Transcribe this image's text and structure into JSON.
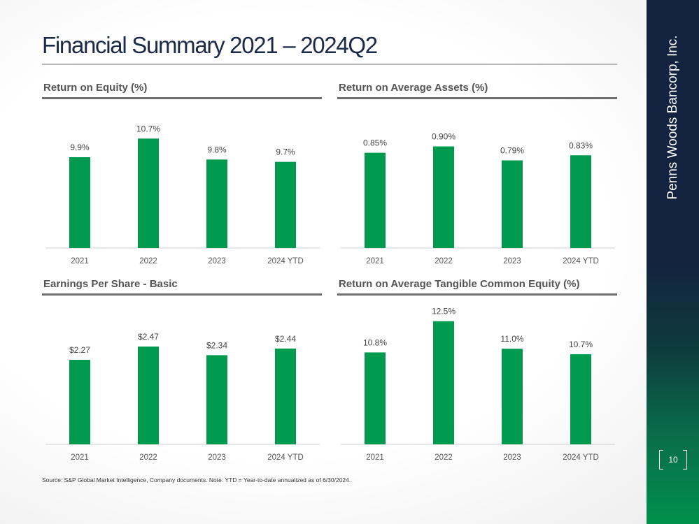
{
  "title": "Financial Summary 2021 – 2024Q2",
  "source": "Source: S&P Global Market Intelligence, Company documents. Note: YTD = Year-to-date annualized as of 6/30/2024.",
  "sidebar": {
    "company": "Penns Woods Bancorp, Inc.",
    "page_number": "10"
  },
  "colors": {
    "bar": "#009a4e",
    "navy": "#13233f"
  },
  "chart_data": [
    {
      "type": "bar",
      "title": "Return on Equity (%)",
      "categories": [
        "2021",
        "2022",
        "2023",
        "2024 YTD"
      ],
      "values": [
        9.9,
        10.7,
        9.8,
        9.7
      ],
      "labels": [
        "9.9%",
        "10.7%",
        "9.8%",
        "9.7%"
      ],
      "ylim": [
        6,
        12
      ]
    },
    {
      "type": "bar",
      "title": "Return on Average Assets (%)",
      "categories": [
        "2021",
        "2022",
        "2023",
        "2024 YTD"
      ],
      "values": [
        0.85,
        0.9,
        0.79,
        0.83
      ],
      "labels": [
        "0.85%",
        "0.90%",
        "0.79%",
        "0.83%"
      ],
      "ylim": [
        0.1,
        1.2
      ]
    },
    {
      "type": "bar",
      "title": "Earnings Per Share - Basic",
      "categories": [
        "2021",
        "2022",
        "2023",
        "2024 YTD"
      ],
      "values": [
        2.27,
        2.47,
        2.34,
        2.44
      ],
      "labels": [
        "$2.27",
        "$2.47",
        "$2.34",
        "$2.44"
      ],
      "ylim": [
        1,
        3.1
      ]
    },
    {
      "type": "bar",
      "title": "Return on Average Tangible Common Equity (%)",
      "categories": [
        "2021",
        "2022",
        "2023",
        "2024 YTD"
      ],
      "values": [
        10.8,
        12.5,
        11.0,
        10.7
      ],
      "labels": [
        "10.8%",
        "12.5%",
        "11.0%",
        "10.7%"
      ],
      "ylim": [
        5.8,
        13.4
      ]
    }
  ]
}
